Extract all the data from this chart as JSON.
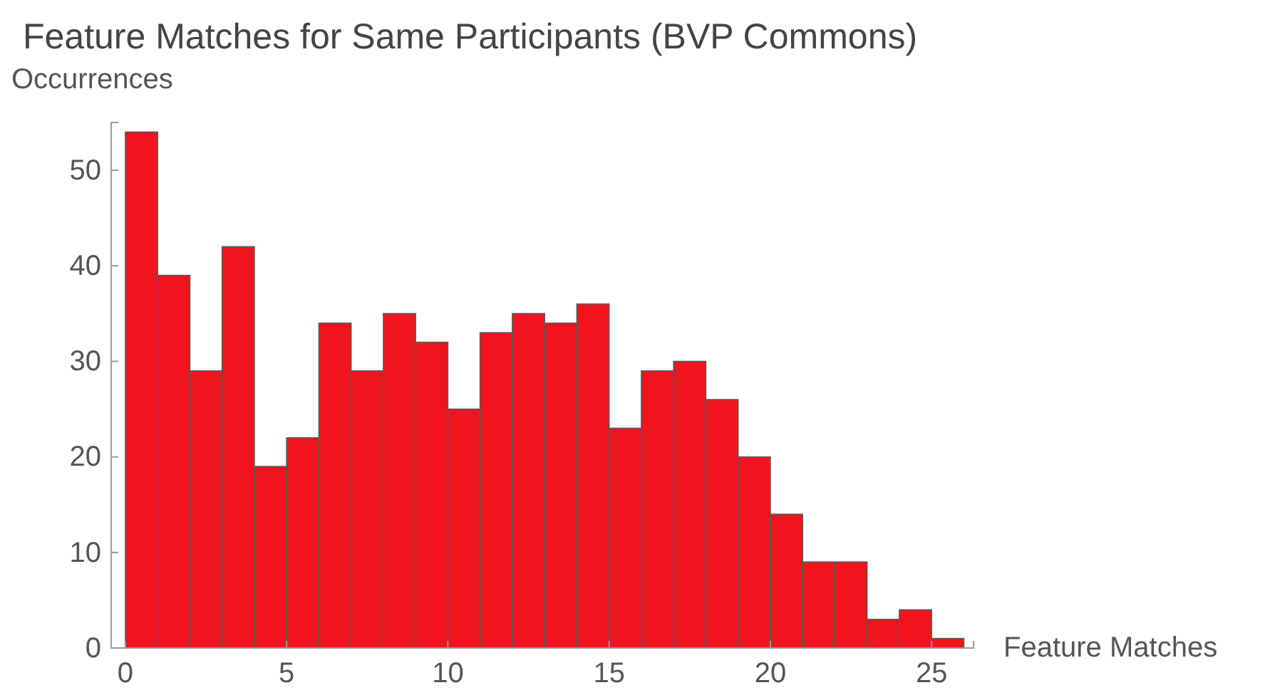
{
  "chart_data": {
    "type": "histogram",
    "title": "Feature Matches for Same Participants (BVP Commons)",
    "xlabel": "Feature Matches",
    "ylabel": "Occurrences",
    "bins": [
      0,
      1,
      2,
      3,
      4,
      5,
      6,
      7,
      8,
      9,
      10,
      11,
      12,
      13,
      14,
      15,
      16,
      17,
      18,
      19,
      20,
      21,
      22,
      23,
      24,
      25,
      26
    ],
    "values": [
      54,
      39,
      29,
      42,
      19,
      22,
      34,
      29,
      35,
      32,
      25,
      33,
      35,
      34,
      36,
      23,
      29,
      30,
      26,
      20,
      14,
      9,
      9,
      3,
      4,
      1
    ],
    "color": "#f0141e",
    "xlim": [
      -0.44,
      26.3
    ],
    "ylim": [
      0,
      55
    ],
    "xticks": [
      0,
      5,
      10,
      15,
      20,
      25
    ],
    "yticks": [
      0,
      10,
      20,
      30,
      40,
      50
    ],
    "grid": false
  }
}
